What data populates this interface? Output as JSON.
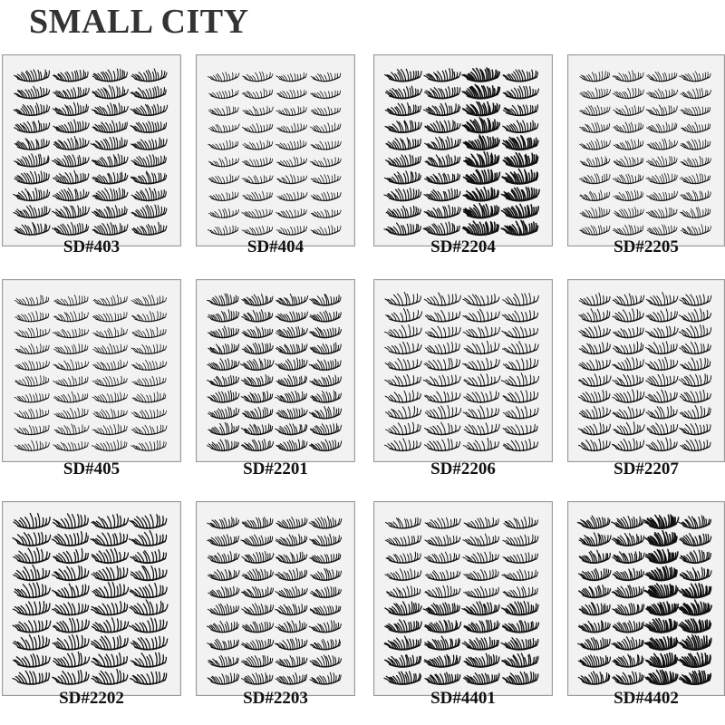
{
  "brand": "SMALL CITY",
  "products": [
    {
      "code": "SD#403",
      "style": "dense"
    },
    {
      "code": "SD#404",
      "style": "light"
    },
    {
      "code": "SD#2204",
      "style": "mixed-dark"
    },
    {
      "code": "SD#2205",
      "style": "wispy"
    },
    {
      "code": "SD#405",
      "style": "wispy"
    },
    {
      "code": "SD#2201",
      "style": "medium"
    },
    {
      "code": "SD#2206",
      "style": "spiky"
    },
    {
      "code": "SD#2207",
      "style": "spiky"
    },
    {
      "code": "SD#2202",
      "style": "spiky-dense"
    },
    {
      "code": "SD#2203",
      "style": "medium"
    },
    {
      "code": "SD#4401",
      "style": "mixed-light-top"
    },
    {
      "code": "SD#4402",
      "style": "mixed-dark"
    }
  ],
  "grid": {
    "columns": 4,
    "rows": 3,
    "lash_columns": 4,
    "lash_rows": 10
  }
}
